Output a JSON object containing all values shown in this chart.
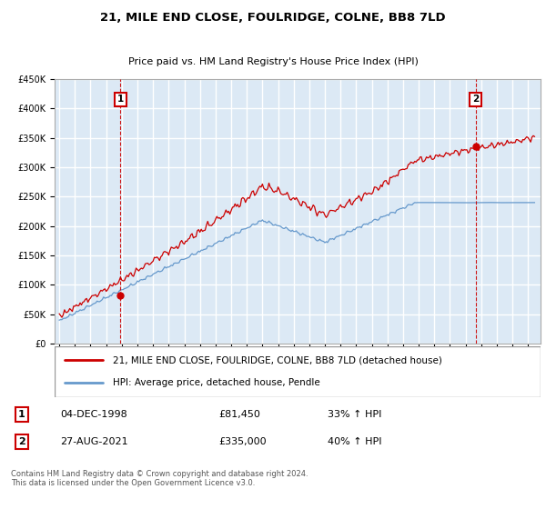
{
  "title": "21, MILE END CLOSE, FOULRIDGE, COLNE, BB8 7LD",
  "subtitle": "Price paid vs. HM Land Registry's House Price Index (HPI)",
  "legend_line1": "21, MILE END CLOSE, FOULRIDGE, COLNE, BB8 7LD (detached house)",
  "legend_line2": "HPI: Average price, detached house, Pendle",
  "annotation1_date": "04-DEC-1998",
  "annotation1_price": "£81,450",
  "annotation1_hpi": "33% ↑ HPI",
  "annotation1_year": 1998.92,
  "annotation1_value": 81450,
  "annotation2_date": "27-AUG-2021",
  "annotation2_price": "£335,000",
  "annotation2_hpi": "40% ↑ HPI",
  "annotation2_year": 2021.65,
  "annotation2_value": 335000,
  "footer": "Contains HM Land Registry data © Crown copyright and database right 2024.\nThis data is licensed under the Open Government Licence v3.0.",
  "ylim": [
    0,
    450000
  ],
  "xlim_start": 1994.7,
  "xlim_end": 2025.8,
  "bg_color": "#dce9f5",
  "grid_color": "#ffffff",
  "line1_color": "#cc0000",
  "line2_color": "#6699cc",
  "annotation_box_color": "#cc0000"
}
